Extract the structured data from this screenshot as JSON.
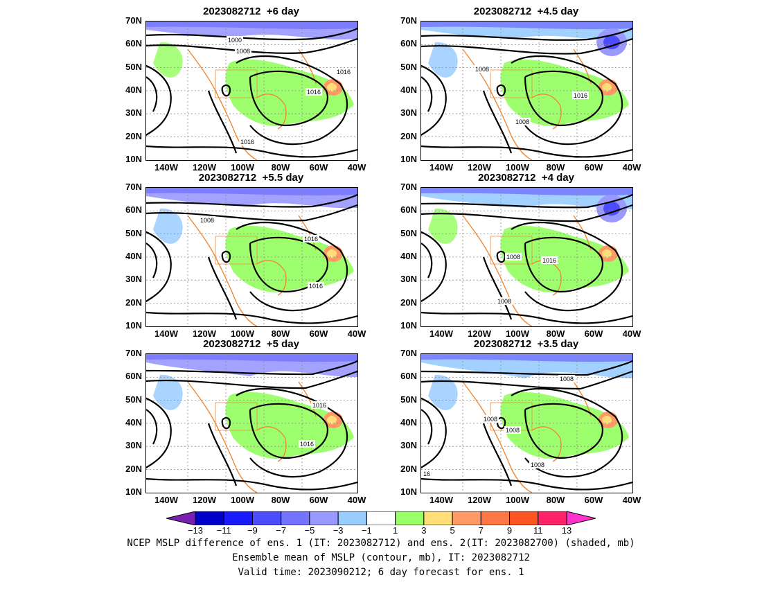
{
  "panels": [
    {
      "title": "2023082712  +6 day",
      "isobar_labels": [
        "1000",
        "1008",
        "1016",
        "1016",
        "1016"
      ]
    },
    {
      "title": "2023082712  +4.5 day",
      "isobar_labels": [
        "1008",
        "1016",
        "1008"
      ]
    },
    {
      "title": "2023082712  +5.5 day",
      "isobar_labels": [
        "1008",
        "1016",
        "1016"
      ]
    },
    {
      "title": "2023082712  +4 day",
      "isobar_labels": [
        "1008",
        "1016",
        "1008"
      ]
    },
    {
      "title": "2023082712  +5 day",
      "isobar_labels": [
        "1016",
        "1016"
      ]
    },
    {
      "title": "2023082712  +3.5 day",
      "isobar_labels": [
        "1008",
        "1008",
        "1008",
        "1008",
        "16"
      ]
    }
  ],
  "lat_labels": [
    "70N",
    "60N",
    "50N",
    "40N",
    "30N",
    "20N",
    "10N"
  ],
  "lon_labels": [
    "140W",
    "120W",
    "100W",
    "80W",
    "60W",
    "40W"
  ],
  "colorbar": {
    "levels": [
      "−13",
      "−11",
      "−9",
      "−7",
      "−5",
      "−3",
      "−1",
      "1",
      "3",
      "5",
      "7",
      "9",
      "11",
      "13"
    ],
    "colors": [
      "#7a1fb0",
      "#0000cc",
      "#1a1aff",
      "#4d4dff",
      "#7373ff",
      "#9999ff",
      "#99ccff",
      "#ffffff",
      "#99ff66",
      "#ffdd77",
      "#ff9966",
      "#ff7744",
      "#ff5522",
      "#ff2266",
      "#ff33cc"
    ]
  },
  "caption": {
    "line1": "NCEP MSLP difference of ens. 1 (IT: 2023082712) and ens. 2(IT: 2023082700) (shaded, mb)",
    "line2": "Ensemble mean of MSLP (contour, mb), IT: 2023082712",
    "line3": "Valid time: 2023090212; 6 day forecast for ens. 1"
  }
}
